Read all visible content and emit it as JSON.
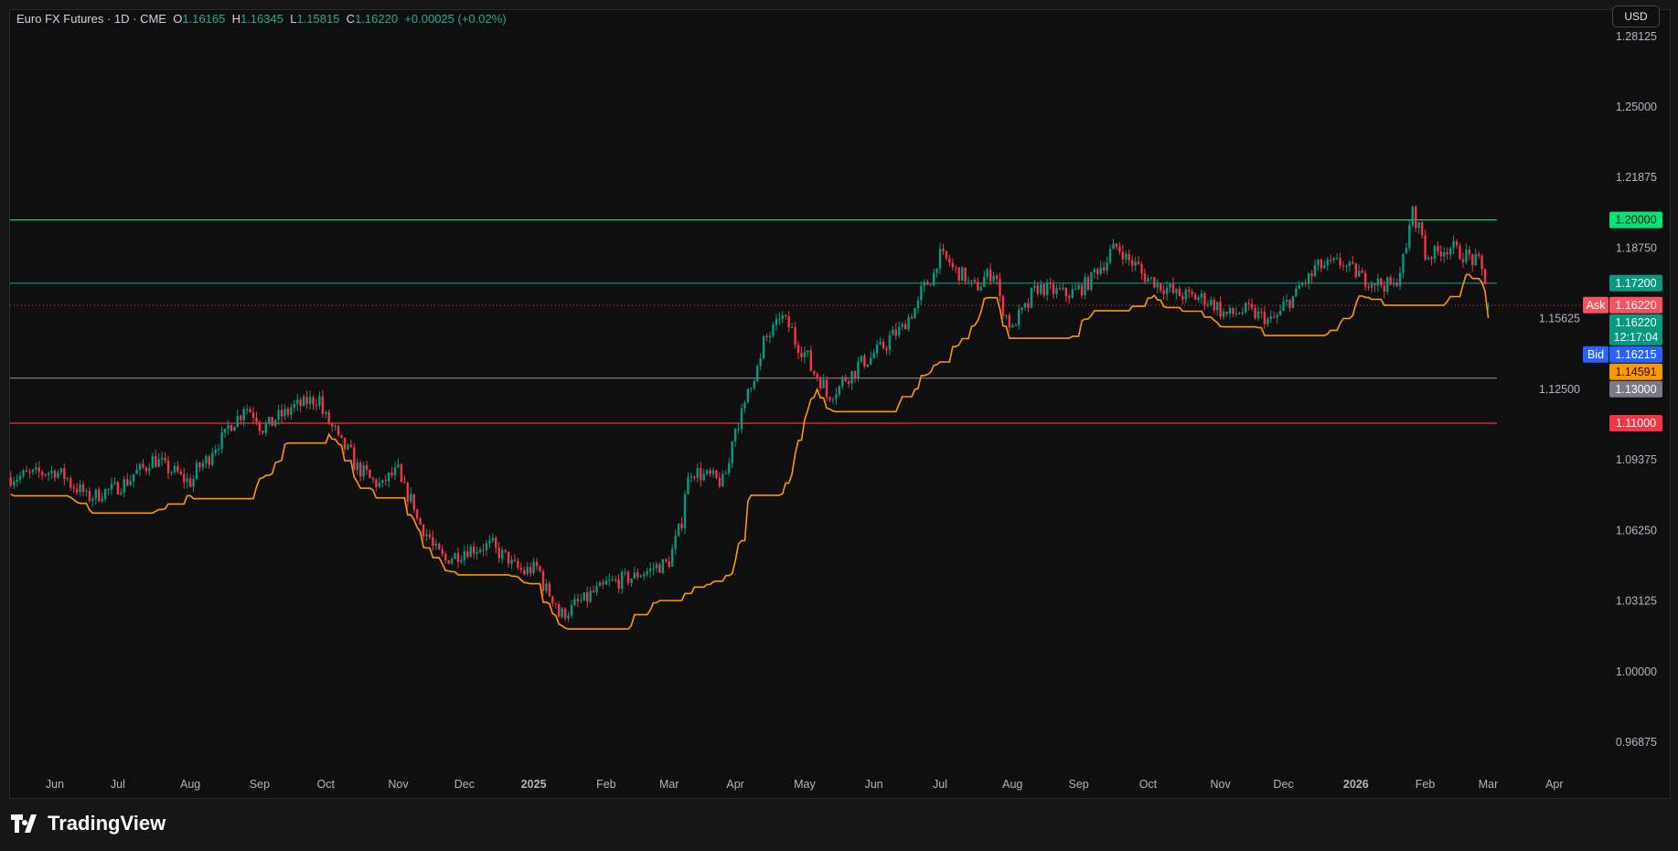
{
  "header": {
    "symbol": "Euro FX Futures · 1D · CME",
    "open_label": "O",
    "open": "1.16165",
    "high_label": "H",
    "high": "1.16345",
    "low_label": "L",
    "low": "1.15815",
    "close_label": "C",
    "close": "1.16220",
    "change": "+0.00025 (+0.02%)"
  },
  "currency_button": "USD",
  "footer": {
    "brand": "TradingView"
  },
  "chart_data": {
    "type": "candlestick",
    "title": "Euro FX Futures · 1D · CME",
    "ylim": [
      0.955,
      1.29
    ],
    "y_ticks": [
      "1.28125",
      "1.25000",
      "1.21875",
      "1.18750",
      "1.15625",
      "1.12500",
      "1.09375",
      "1.06250",
      "1.03125",
      "1.00000",
      "0.96875"
    ],
    "x_ticks": [
      {
        "label": "Jun",
        "date": "2024-06"
      },
      {
        "label": "Jul",
        "date": "2024-07"
      },
      {
        "label": "Aug",
        "date": "2024-08"
      },
      {
        "label": "Sep",
        "date": "2024-09"
      },
      {
        "label": "Oct",
        "date": "2024-10"
      },
      {
        "label": "Nov",
        "date": "2024-11"
      },
      {
        "label": "Dec",
        "date": "2024-12"
      },
      {
        "label": "2025",
        "date": "2025-01",
        "bold": true
      },
      {
        "label": "Feb",
        "date": "2025-02"
      },
      {
        "label": "Mar",
        "date": "2025-03"
      },
      {
        "label": "Apr",
        "date": "2025-04"
      },
      {
        "label": "May",
        "date": "2025-05"
      },
      {
        "label": "Jun",
        "date": "2025-06"
      },
      {
        "label": "Jul",
        "date": "2025-07"
      },
      {
        "label": "Aug",
        "date": "2025-08"
      },
      {
        "label": "Sep",
        "date": "2025-09"
      },
      {
        "label": "Oct",
        "date": "2025-10"
      },
      {
        "label": "Nov",
        "date": "2025-11"
      },
      {
        "label": "Dec",
        "date": "2025-12"
      },
      {
        "label": "2026",
        "date": "2026-01",
        "bold": true
      },
      {
        "label": "Feb",
        "date": "2026-02"
      },
      {
        "label": "Mar",
        "date": "2026-03"
      },
      {
        "label": "Apr",
        "date": "2026-04"
      }
    ],
    "approx_closes": [
      [
        "2024-05-14",
        1.086
      ],
      [
        "2024-06-03",
        1.089
      ],
      [
        "2024-06-17",
        1.077
      ],
      [
        "2024-07-01",
        1.082
      ],
      [
        "2024-07-16",
        1.094
      ],
      [
        "2024-08-01",
        1.084
      ],
      [
        "2024-08-15",
        1.103
      ],
      [
        "2024-08-26",
        1.118
      ],
      [
        "2024-09-03",
        1.108
      ],
      [
        "2024-09-16",
        1.117
      ],
      [
        "2024-09-27",
        1.121
      ],
      [
        "2024-10-03",
        1.108
      ],
      [
        "2024-10-16",
        1.089
      ],
      [
        "2024-10-25",
        1.082
      ],
      [
        "2024-11-01",
        1.089
      ],
      [
        "2024-11-14",
        1.061
      ],
      [
        "2024-11-22",
        1.049
      ],
      [
        "2024-12-02",
        1.054
      ],
      [
        "2024-12-13",
        1.056
      ],
      [
        "2024-12-27",
        1.044
      ],
      [
        "2025-01-02",
        1.046
      ],
      [
        "2025-01-13",
        1.025
      ],
      [
        "2025-02-03",
        1.039
      ],
      [
        "2025-02-14",
        1.042
      ],
      [
        "2025-03-03",
        1.049
      ],
      [
        "2025-03-12",
        1.089
      ],
      [
        "2025-03-26",
        1.084
      ],
      [
        "2025-04-01",
        1.108
      ],
      [
        "2025-04-14",
        1.146
      ],
      [
        "2025-04-21",
        1.158
      ],
      [
        "2025-05-01",
        1.141
      ],
      [
        "2025-05-12",
        1.122
      ],
      [
        "2025-05-26",
        1.136
      ],
      [
        "2025-06-02",
        1.141
      ],
      [
        "2025-06-16",
        1.155
      ],
      [
        "2025-06-26",
        1.174
      ],
      [
        "2025-07-01",
        1.184
      ],
      [
        "2025-07-16",
        1.17
      ],
      [
        "2025-07-24",
        1.177
      ],
      [
        "2025-08-01",
        1.151
      ],
      [
        "2025-08-13",
        1.17
      ],
      [
        "2025-08-26",
        1.167
      ],
      [
        "2025-09-02",
        1.17
      ],
      [
        "2025-09-17",
        1.188
      ],
      [
        "2025-09-26",
        1.179
      ],
      [
        "2025-10-01",
        1.174
      ],
      [
        "2025-10-14",
        1.167
      ],
      [
        "2025-10-27",
        1.165
      ],
      [
        "2025-11-05",
        1.158
      ],
      [
        "2025-11-14",
        1.16
      ],
      [
        "2025-11-25",
        1.155
      ],
      [
        "2025-12-01",
        1.162
      ],
      [
        "2025-12-15",
        1.179
      ],
      [
        "2025-12-26",
        1.181
      ],
      [
        "2026-01-05",
        1.174
      ],
      [
        "2026-01-19",
        1.17
      ],
      [
        "2026-01-27",
        1.203
      ],
      [
        "2026-02-02",
        1.184
      ],
      [
        "2026-02-12",
        1.188
      ],
      [
        "2026-02-25",
        1.181
      ],
      [
        "2026-03-02",
        1.1622
      ]
    ],
    "horizontal_lines": [
      {
        "price": 1.2,
        "label": "1.20000",
        "color": "#00e676"
      },
      {
        "price": 1.172,
        "label": "1.17200",
        "color": "#089981"
      },
      {
        "price": 1.13,
        "label": "1.13000",
        "color": "#787b86"
      },
      {
        "price": 1.11,
        "label": "1.11000",
        "color": "#f23645"
      }
    ],
    "last_price": {
      "price": 1.1622,
      "label": "1.16220",
      "countdown": "12:17:04",
      "color": "#089981"
    },
    "ask": {
      "name": "Ask",
      "price": 1.1622,
      "label": "1.16220",
      "color": "#f7525f"
    },
    "bid": {
      "name": "Bid",
      "price": 1.16215,
      "label": "1.16215",
      "color": "#2962ff"
    },
    "indicator": {
      "label": "1.14591",
      "price": 1.14591,
      "color": "#ff9800"
    },
    "up_color": "#089981",
    "down_color": "#f23645",
    "grid": false
  }
}
